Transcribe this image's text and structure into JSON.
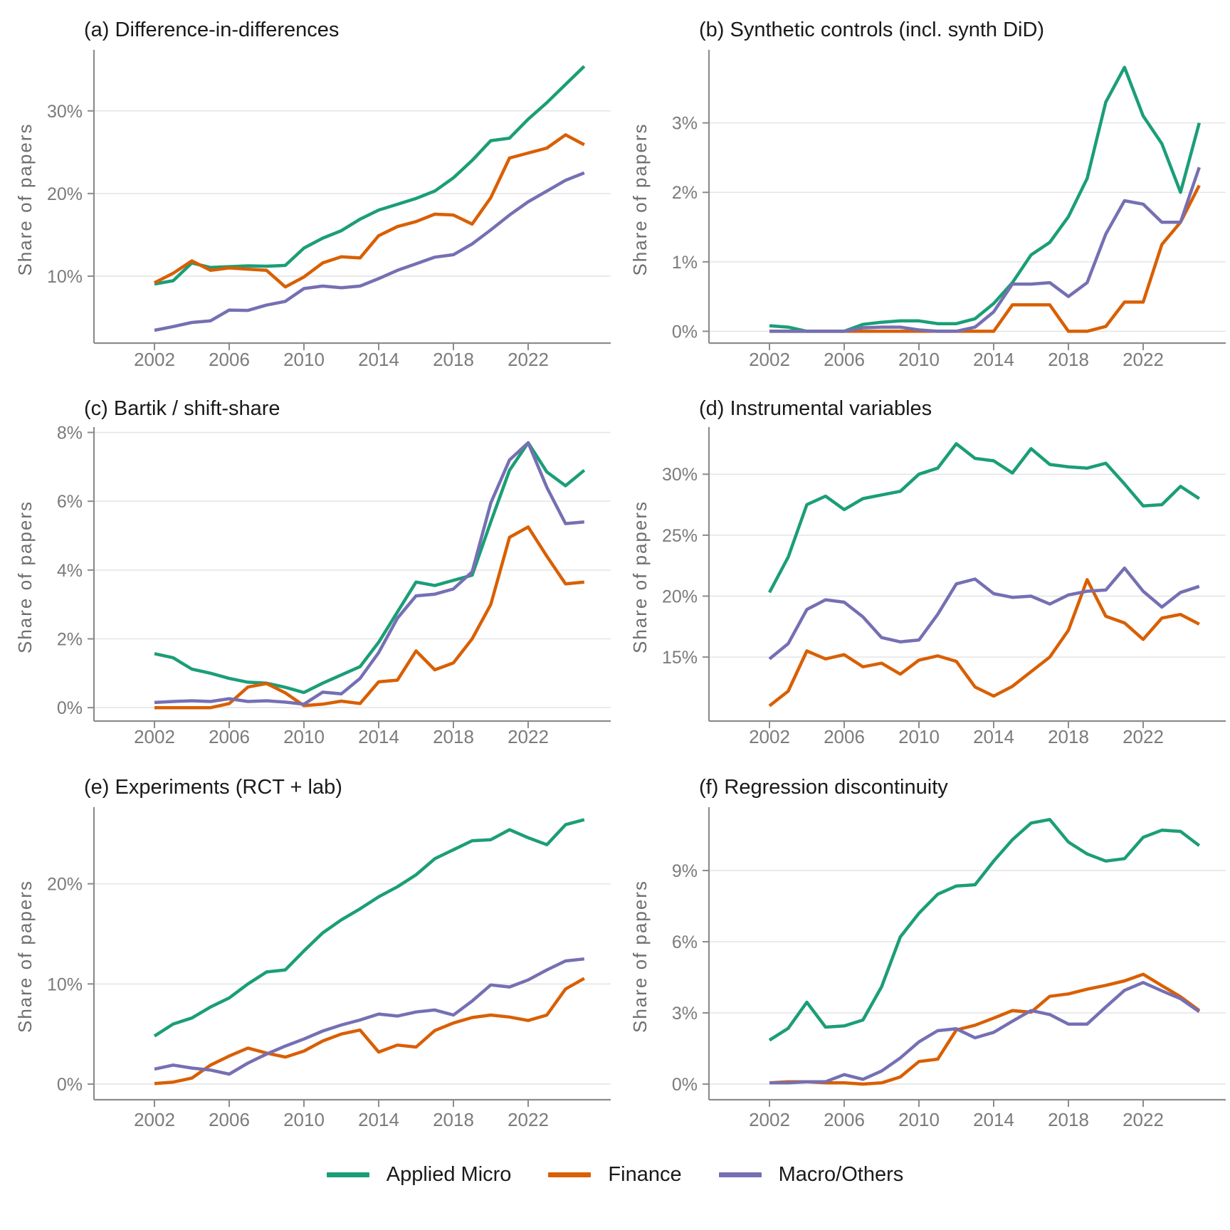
{
  "figure": {
    "ylabel": "Share of papers",
    "legend": [
      {
        "label": "Applied Micro",
        "color": "#1B9E77"
      },
      {
        "label": "Finance",
        "color": "#D95F02"
      },
      {
        "label": "Macro/Others",
        "color": "#7570B3"
      }
    ],
    "colors": {
      "applied_micro": "#1B9E77",
      "finance": "#D95F02",
      "macro_others": "#7570B3",
      "gridline": "#e4e4e4",
      "axis": "#8c8c8c",
      "tick_label": "#7b7b7b",
      "axis_title": "#6e6e6e",
      "title_text": "#1a1a1a"
    }
  },
  "chart_data": [
    {
      "type": "line",
      "title": "(a) Difference-in-differences",
      "ylabel": "Share of papers",
      "grid": "horizontal",
      "years": [
        2002,
        2003,
        2004,
        2005,
        2006,
        2007,
        2008,
        2009,
        2010,
        2011,
        2012,
        2013,
        2014,
        2015,
        2016,
        2017,
        2018,
        2019,
        2020,
        2021,
        2022,
        2023,
        2024,
        2025
      ],
      "x_ticks": [
        2002,
        2006,
        2010,
        2014,
        2018,
        2022
      ],
      "x_tick_labels": [
        "2002",
        "2006",
        "2010",
        "2014",
        "2018",
        "2022"
      ],
      "y_ticks": [
        {
          "value": 10,
          "label": "10%"
        },
        {
          "value": 20,
          "label": "20%"
        },
        {
          "value": 30,
          "label": "30%"
        }
      ],
      "ylim": [
        1.9,
        36.7
      ],
      "series": [
        {
          "name": "Applied Micro",
          "values": [
            9.05,
            9.45,
            11.6,
            11.05,
            11.15,
            11.25,
            11.2,
            11.3,
            13.4,
            14.6,
            15.5,
            16.9,
            18.0,
            18.7,
            19.4,
            20.3,
            21.9,
            24.0,
            26.4,
            26.7,
            29.0,
            31.0,
            33.2,
            35.4
          ]
        },
        {
          "name": "Finance",
          "values": [
            9.2,
            10.35,
            11.85,
            10.7,
            11.0,
            10.85,
            10.7,
            8.7,
            9.9,
            11.6,
            12.35,
            12.2,
            14.9,
            16.0,
            16.6,
            17.5,
            17.4,
            16.3,
            19.5,
            24.3,
            24.9,
            25.5,
            27.1,
            25.9
          ]
        },
        {
          "name": "Macro/Others",
          "values": [
            3.45,
            3.9,
            4.4,
            4.6,
            5.9,
            5.85,
            6.5,
            6.95,
            8.5,
            8.8,
            8.6,
            8.8,
            9.7,
            10.7,
            11.5,
            12.3,
            12.6,
            13.9,
            15.6,
            17.4,
            19.0,
            20.3,
            21.6,
            22.5
          ]
        }
      ]
    },
    {
      "type": "line",
      "title": "(b) Synthetic controls (incl. synth DiD)",
      "ylabel": "Share of papers",
      "grid": "horizontal",
      "years": [
        2002,
        2003,
        2004,
        2005,
        2006,
        2007,
        2008,
        2009,
        2010,
        2011,
        2012,
        2013,
        2014,
        2015,
        2016,
        2017,
        2018,
        2019,
        2020,
        2021,
        2022,
        2023,
        2024,
        2025
      ],
      "x_ticks": [
        2002,
        2006,
        2010,
        2014,
        2018,
        2022
      ],
      "x_tick_labels": [
        "2002",
        "2006",
        "2010",
        "2014",
        "2018",
        "2022"
      ],
      "y_ticks": [
        {
          "value": 0,
          "label": "0%"
        },
        {
          "value": 1,
          "label": "1%"
        },
        {
          "value": 2,
          "label": "2%"
        },
        {
          "value": 3,
          "label": "3%"
        }
      ],
      "ylim": [
        -0.17,
        3.97
      ],
      "series": [
        {
          "name": "Applied Micro",
          "values": [
            0.08,
            0.06,
            0,
            0,
            0,
            0.1,
            0.13,
            0.15,
            0.15,
            0.11,
            0.11,
            0.18,
            0.4,
            0.7,
            1.1,
            1.28,
            1.65,
            2.2,
            3.3,
            3.8,
            3.1,
            2.7,
            2.0,
            3.0
          ]
        },
        {
          "name": "Finance",
          "values": [
            0,
            0,
            0,
            0,
            0,
            0,
            0,
            0,
            0,
            0,
            0,
            0,
            0,
            0.38,
            0.38,
            0.38,
            0,
            0,
            0.07,
            0.42,
            0.42,
            1.25,
            1.57,
            2.1
          ]
        },
        {
          "name": "Macro/Others",
          "values": [
            0,
            0,
            0,
            0,
            0,
            0.05,
            0.06,
            0.06,
            0.02,
            0,
            0,
            0.06,
            0.28,
            0.68,
            0.68,
            0.7,
            0.5,
            0.7,
            1.4,
            1.88,
            1.83,
            1.57,
            1.57,
            2.36
          ]
        }
      ]
    },
    {
      "type": "line",
      "title": "(c) Bartik / shift-share",
      "ylabel": "Share of papers",
      "grid": "horizontal",
      "years": [
        2002,
        2003,
        2004,
        2005,
        2006,
        2007,
        2008,
        2009,
        2010,
        2011,
        2012,
        2013,
        2014,
        2015,
        2016,
        2017,
        2018,
        2019,
        2020,
        2021,
        2022,
        2023,
        2024,
        2025
      ],
      "x_ticks": [
        2002,
        2006,
        2010,
        2014,
        2018,
        2022
      ],
      "x_tick_labels": [
        "2002",
        "2006",
        "2010",
        "2014",
        "2018",
        "2022"
      ],
      "y_ticks": [
        {
          "value": 0,
          "label": "0%"
        },
        {
          "value": 2,
          "label": "2%"
        },
        {
          "value": 4,
          "label": "4%"
        },
        {
          "value": 6,
          "label": "6%"
        },
        {
          "value": 8,
          "label": "8%"
        }
      ],
      "ylim": [
        -0.39,
        7.99
      ],
      "series": [
        {
          "name": "Applied Micro",
          "values": [
            1.57,
            1.45,
            1.12,
            1.0,
            0.85,
            0.74,
            0.71,
            0.59,
            0.44,
            0.71,
            0.95,
            1.19,
            1.9,
            2.78,
            3.65,
            3.55,
            3.7,
            3.85,
            5.4,
            6.9,
            7.7,
            6.85,
            6.45,
            6.9
          ]
        },
        {
          "name": "Finance",
          "values": [
            0,
            0,
            0,
            0,
            0.12,
            0.6,
            0.7,
            0.43,
            0.06,
            0.1,
            0.19,
            0.12,
            0.75,
            0.8,
            1.65,
            1.1,
            1.3,
            2.0,
            3.0,
            4.95,
            5.25,
            4.4,
            3.6,
            3.65
          ]
        },
        {
          "name": "Macro/Others",
          "values": [
            0.15,
            0.18,
            0.2,
            0.18,
            0.26,
            0.18,
            0.2,
            0.16,
            0.1,
            0.45,
            0.4,
            0.85,
            1.6,
            2.6,
            3.25,
            3.3,
            3.45,
            3.95,
            5.95,
            7.2,
            7.7,
            6.4,
            5.35,
            5.4
          ]
        }
      ]
    },
    {
      "type": "line",
      "title": "(d) Instrumental variables",
      "ylabel": "Share of papers",
      "grid": "horizontal",
      "years": [
        2002,
        2003,
        2004,
        2005,
        2006,
        2007,
        2008,
        2009,
        2010,
        2011,
        2012,
        2013,
        2014,
        2015,
        2016,
        2017,
        2018,
        2019,
        2020,
        2021,
        2022,
        2023,
        2024,
        2025
      ],
      "x_ticks": [
        2002,
        2006,
        2010,
        2014,
        2018,
        2022
      ],
      "x_tick_labels": [
        "2002",
        "2006",
        "2010",
        "2014",
        "2018",
        "2022"
      ],
      "y_ticks": [
        {
          "value": 15,
          "label": "15%"
        },
        {
          "value": 20,
          "label": "20%"
        },
        {
          "value": 25,
          "label": "25%"
        },
        {
          "value": 30,
          "label": "30%"
        }
      ],
      "ylim": [
        9.75,
        33.4
      ],
      "series": [
        {
          "name": "Applied Micro",
          "values": [
            20.3,
            23.2,
            27.5,
            28.2,
            27.1,
            28.0,
            28.3,
            28.6,
            30.0,
            30.5,
            32.5,
            31.3,
            31.1,
            30.1,
            32.1,
            30.8,
            30.6,
            30.5,
            30.9,
            29.2,
            27.4,
            27.5,
            29.0,
            28.0
          ]
        },
        {
          "name": "Finance",
          "values": [
            11.0,
            12.2,
            15.5,
            14.85,
            15.2,
            14.2,
            14.5,
            13.6,
            14.75,
            15.1,
            14.65,
            12.55,
            11.8,
            12.6,
            13.8,
            15.0,
            17.2,
            21.35,
            18.35,
            17.8,
            16.45,
            18.2,
            18.5,
            17.7
          ]
        },
        {
          "name": "Macro/Others",
          "values": [
            14.85,
            16.1,
            18.9,
            19.7,
            19.5,
            18.3,
            16.6,
            16.25,
            16.4,
            18.5,
            21.0,
            21.4,
            20.2,
            19.9,
            20.0,
            19.35,
            20.1,
            20.4,
            20.5,
            22.3,
            20.4,
            19.1,
            20.3,
            20.8
          ]
        }
      ]
    },
    {
      "type": "line",
      "title": "(e) Experiments (RCT + lab)",
      "ylabel": "Share of papers",
      "grid": "horizontal",
      "years": [
        2002,
        2003,
        2004,
        2005,
        2006,
        2007,
        2008,
        2009,
        2010,
        2011,
        2012,
        2013,
        2014,
        2015,
        2016,
        2017,
        2018,
        2019,
        2020,
        2021,
        2022,
        2023,
        2024,
        2025
      ],
      "x_ticks": [
        2002,
        2006,
        2010,
        2014,
        2018,
        2022
      ],
      "x_tick_labels": [
        "2002",
        "2006",
        "2010",
        "2014",
        "2018",
        "2022"
      ],
      "y_ticks": [
        {
          "value": 0,
          "label": "0%"
        },
        {
          "value": 10,
          "label": "10%"
        },
        {
          "value": 20,
          "label": "20%"
        }
      ],
      "ylim": [
        -1.56,
        27.08
      ],
      "series": [
        {
          "name": "Applied Micro",
          "values": [
            4.8,
            6.0,
            6.6,
            7.7,
            8.6,
            10.0,
            11.2,
            11.4,
            13.3,
            15.1,
            16.4,
            17.5,
            18.7,
            19.7,
            20.9,
            22.5,
            23.4,
            24.3,
            24.4,
            25.4,
            24.6,
            23.9,
            25.9,
            26.4
          ]
        },
        {
          "name": "Finance",
          "values": [
            0.05,
            0.2,
            0.6,
            1.9,
            2.8,
            3.6,
            3.1,
            2.7,
            3.3,
            4.3,
            5.0,
            5.4,
            3.2,
            3.9,
            3.7,
            5.35,
            6.1,
            6.65,
            6.9,
            6.7,
            6.35,
            6.9,
            9.5,
            10.55
          ]
        },
        {
          "name": "Macro/Others",
          "values": [
            1.5,
            1.9,
            1.6,
            1.4,
            1.0,
            2.1,
            3.0,
            3.8,
            4.5,
            5.3,
            5.9,
            6.4,
            7.0,
            6.8,
            7.2,
            7.4,
            6.9,
            8.3,
            9.9,
            9.7,
            10.4,
            11.4,
            12.3,
            12.5
          ]
        }
      ]
    },
    {
      "type": "line",
      "title": "(f) Regression discontinuity",
      "ylabel": "Share of papers",
      "grid": "horizontal",
      "years": [
        2002,
        2003,
        2004,
        2005,
        2006,
        2007,
        2008,
        2009,
        2010,
        2011,
        2012,
        2013,
        2014,
        2015,
        2016,
        2017,
        2018,
        2019,
        2020,
        2021,
        2022,
        2023,
        2024,
        2025
      ],
      "x_ticks": [
        2002,
        2006,
        2010,
        2014,
        2018,
        2022
      ],
      "x_tick_labels": [
        "2002",
        "2006",
        "2010",
        "2014",
        "2018",
        "2022"
      ],
      "y_ticks": [
        {
          "value": 0,
          "label": "0%"
        },
        {
          "value": 3,
          "label": "3%"
        },
        {
          "value": 6,
          "label": "6%"
        },
        {
          "value": 9,
          "label": "9%"
        }
      ],
      "ylim": [
        -0.66,
        11.43
      ],
      "series": [
        {
          "name": "Applied Micro",
          "values": [
            1.85,
            2.35,
            3.45,
            2.4,
            2.45,
            2.7,
            4.1,
            6.2,
            7.2,
            8.0,
            8.35,
            8.4,
            9.4,
            10.3,
            11.0,
            11.15,
            10.2,
            9.7,
            9.4,
            9.5,
            10.4,
            10.7,
            10.65,
            10.05
          ]
        },
        {
          "name": "Finance",
          "values": [
            0.05,
            0.1,
            0.1,
            0.05,
            0.05,
            0.0,
            0.05,
            0.3,
            0.95,
            1.05,
            2.28,
            2.48,
            2.78,
            3.1,
            3.03,
            3.7,
            3.8,
            4.0,
            4.16,
            4.35,
            4.63,
            4.15,
            3.68,
            3.1
          ]
        },
        {
          "name": "Macro/Others",
          "values": [
            0.05,
            0.05,
            0.1,
            0.1,
            0.4,
            0.2,
            0.55,
            1.1,
            1.78,
            2.25,
            2.33,
            1.95,
            2.18,
            2.65,
            3.1,
            2.93,
            2.53,
            2.53,
            3.25,
            3.95,
            4.28,
            3.93,
            3.6,
            3.05
          ]
        }
      ]
    }
  ]
}
